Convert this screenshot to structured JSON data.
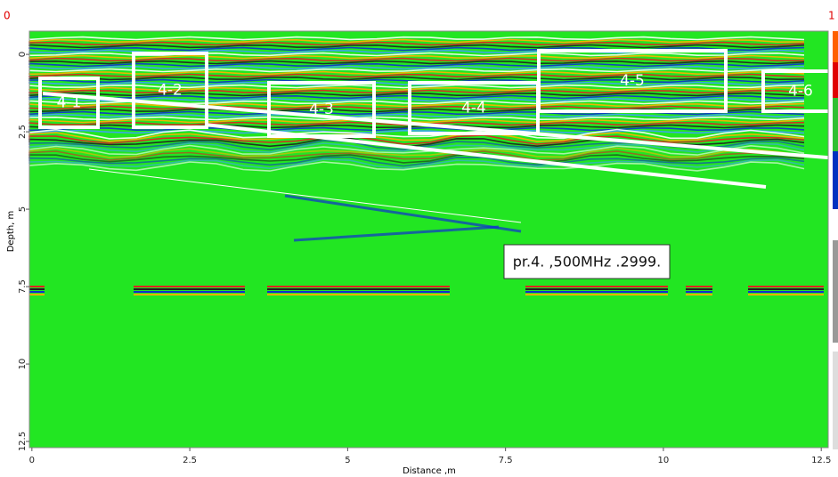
{
  "chart_data": {
    "type": "radargram",
    "xlabel": "Distance ,m",
    "ylabel": "Depth, m",
    "xlim": [
      -0.04,
      12.61
    ],
    "ylim": [
      -0.75,
      12.7
    ],
    "xticks": [
      0,
      2.5,
      5,
      7.5,
      10,
      12.5
    ],
    "yticks": [
      0,
      2.5,
      5,
      7.5,
      10,
      12.5
    ],
    "scale_labels": [
      0,
      1
    ],
    "background_color": "#22e622",
    "annotations": [
      "4-1",
      "4-2",
      "4-3",
      "4-4",
      "4-5",
      "4-6"
    ],
    "profile_label": "pr.4. ,500MHz .2999."
  }
}
